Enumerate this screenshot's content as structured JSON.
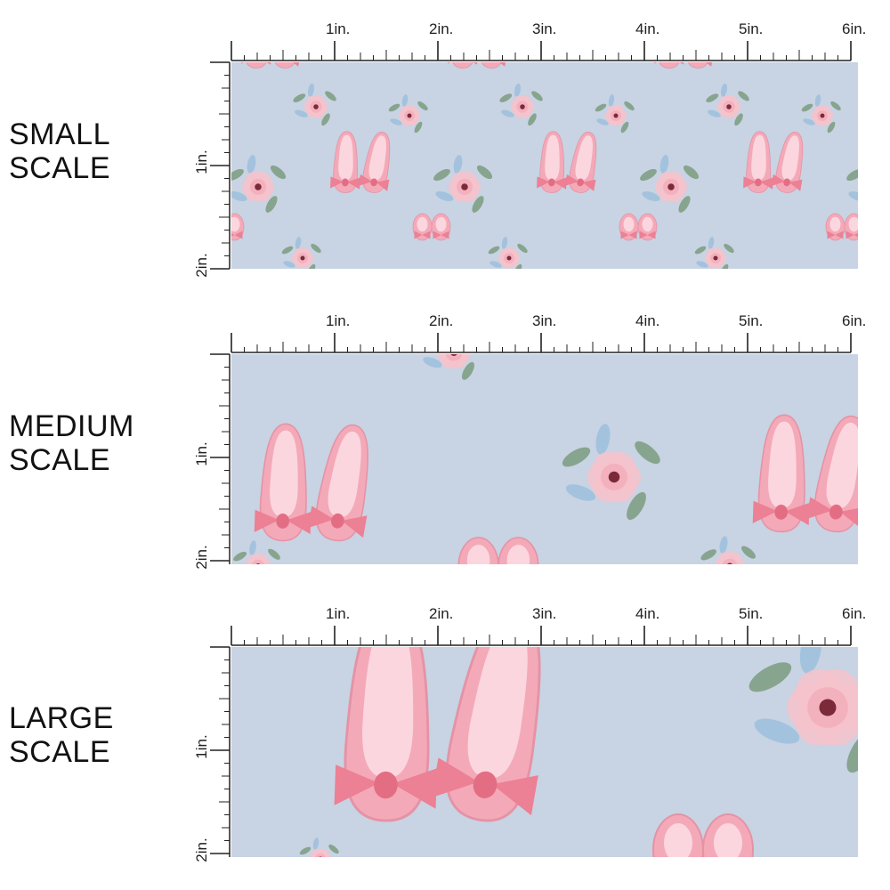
{
  "sections": [
    {
      "id": "small",
      "line1": "SMALL",
      "line2": "SCALE"
    },
    {
      "id": "medium",
      "line1": "MEDIUM",
      "line2": "SCALE"
    },
    {
      "id": "large",
      "line1": "LARGE",
      "line2": "SCALE"
    }
  ],
  "ruler": {
    "top_labels": [
      "1in.",
      "2in.",
      "3in.",
      "4in.",
      "5in.",
      "6in."
    ],
    "side_labels": [
      "1in.",
      "2in."
    ]
  },
  "colors": {
    "fabric_background": "#c8d3e3",
    "shoe_pink": "#f4a9b8",
    "shoe_light": "#fbd6de",
    "bow_pink": "#ec8094",
    "flower_pink": "#f6c2cb",
    "flower_center": "#7a2a38",
    "leaf_green": "#7f9f84",
    "leaf_blue": "#9fc0dd",
    "ruler_ink": "#222222"
  }
}
